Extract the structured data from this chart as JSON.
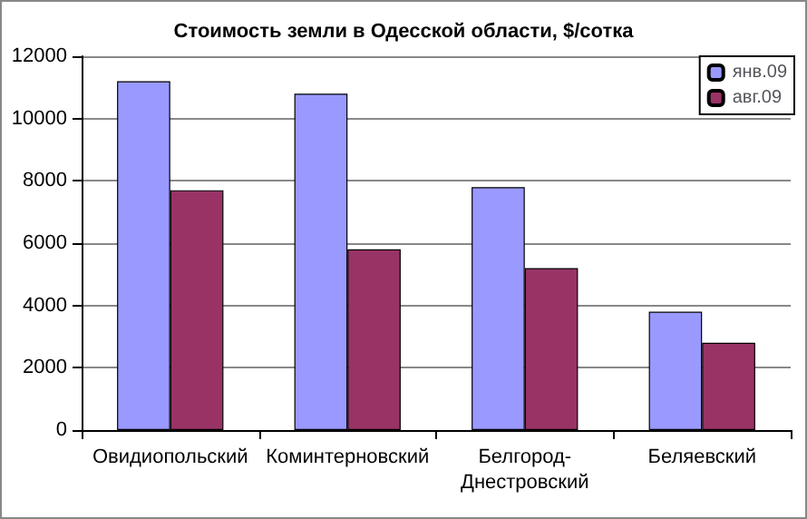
{
  "chart_data": {
    "type": "bar",
    "title": "Стоимость земли в Одесской области, $/сотка",
    "categories": [
      "Овидиопольский",
      "Коминтерновский",
      "Белгород-Днестровский",
      "Беляевский"
    ],
    "series": [
      {
        "name": "янв.09",
        "color": "#9999ff",
        "values": [
          11200,
          10800,
          7800,
          3800
        ]
      },
      {
        "name": "авг.09",
        "color": "#993366",
        "values": [
          7700,
          5800,
          5200,
          2800
        ]
      }
    ],
    "ylim": [
      0,
      12000
    ],
    "yticks": [
      0,
      2000,
      4000,
      6000,
      8000,
      10000,
      12000
    ],
    "grid": "y",
    "legend": "top right"
  }
}
